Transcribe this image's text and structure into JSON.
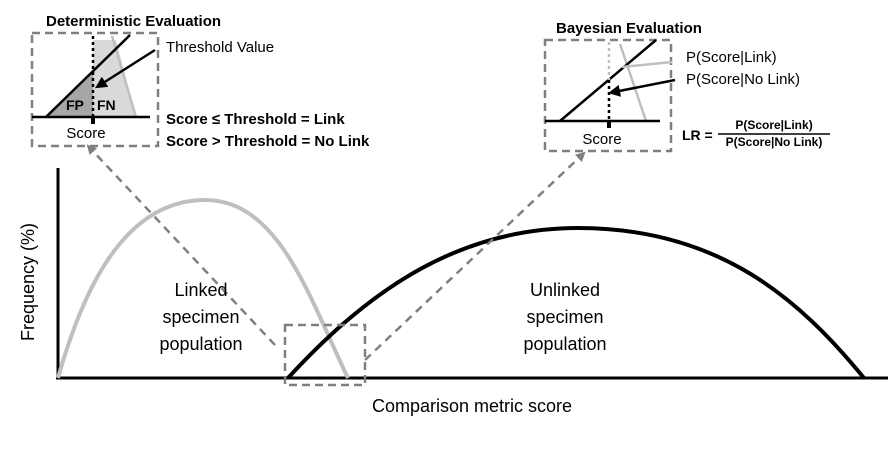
{
  "figure": {
    "axis": {
      "y_label": "Frequency (%)",
      "x_label": "Comparison metric score"
    },
    "linked_population": {
      "label_lines": [
        "Linked",
        "specimen",
        "population"
      ],
      "color": "#bfbfbf"
    },
    "unlinked_population": {
      "label_lines": [
        "Unlinked",
        "specimen",
        "population"
      ],
      "color": "#000000"
    },
    "deterministic": {
      "title": "Deterministic Evaluation",
      "threshold_label": "Threshold Value",
      "fp_label": "FP",
      "fn_label": "FN",
      "score_label": "Score",
      "rule_link": "Score ≤ Threshold = Link",
      "rule_no_link": "Score > Threshold = No Link"
    },
    "bayesian": {
      "title": "Bayesian Evaluation",
      "p_link_label": "P(Score|Link)",
      "p_no_link_label": "P(Score|No Link)",
      "score_label": "Score",
      "lr_prefix": "LR =",
      "lr_numerator": "P(Score|Link)",
      "lr_denominator": "P(Score|No Link)"
    },
    "colors": {
      "dashed_box": "#808080",
      "fp_fill": "#a6a6a6",
      "fn_fill": "#d9d9d9",
      "axis": "#000000"
    }
  }
}
